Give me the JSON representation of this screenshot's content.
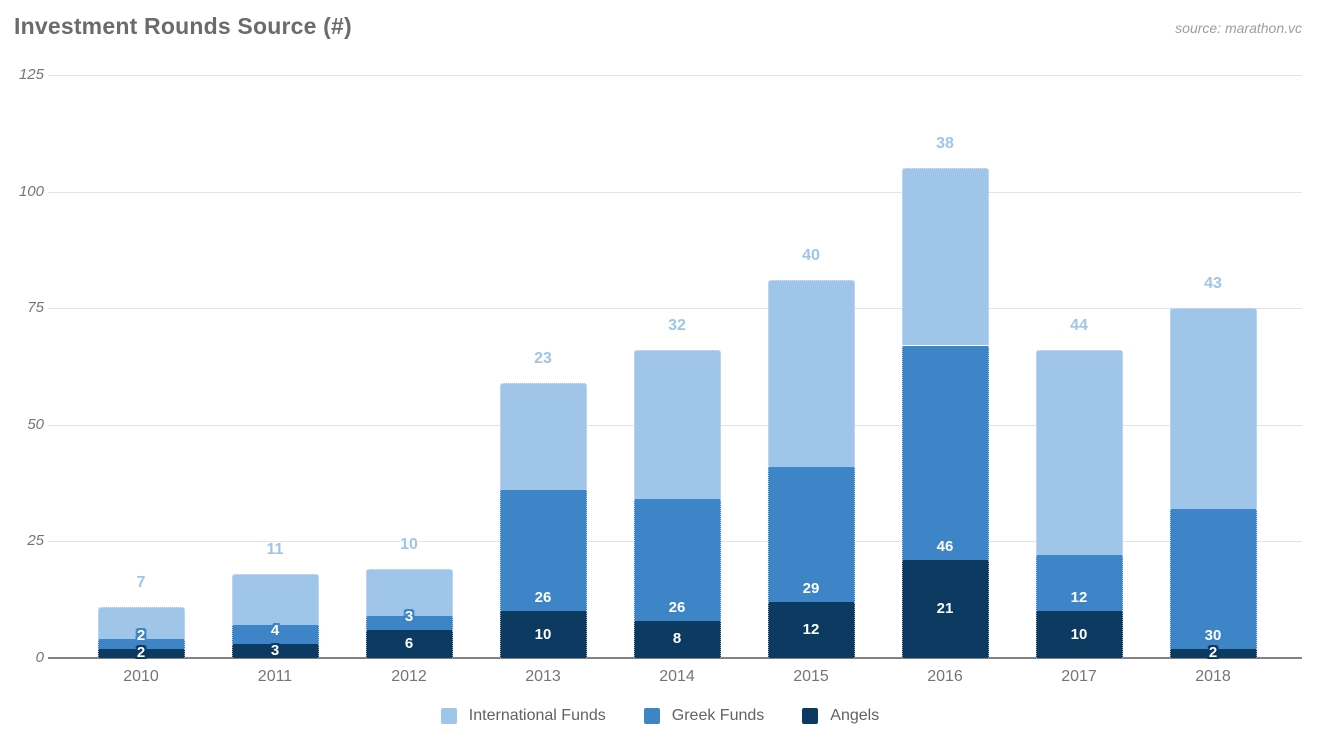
{
  "title": "Investment Rounds Source (#)",
  "source": "source: marathon.vc",
  "chart_data": {
    "type": "bar",
    "stacked": true,
    "title": "Investment Rounds Source (#)",
    "source_note": "source: marathon.vc",
    "xlabel": "",
    "ylabel": "",
    "categories": [
      "2010",
      "2011",
      "2012",
      "2013",
      "2014",
      "2015",
      "2016",
      "2017",
      "2018"
    ],
    "series": [
      {
        "name": "International Funds",
        "color": "#9fc5e8",
        "values": [
          7,
          11,
          10,
          23,
          32,
          40,
          38,
          44,
          43
        ]
      },
      {
        "name": "Greek Funds",
        "color": "#3d85c6",
        "values": [
          2,
          4,
          3,
          26,
          26,
          29,
          46,
          12,
          30
        ]
      },
      {
        "name": "Angels",
        "color": "#0c3a61",
        "values": [
          2,
          3,
          6,
          10,
          8,
          12,
          21,
          10,
          2
        ]
      }
    ],
    "ylim": [
      0,
      125
    ],
    "yticks": [
      0,
      25,
      50,
      75,
      100,
      125
    ],
    "grid": true,
    "legend_position": "bottom",
    "annotation_text_color": "#ffffff",
    "axis_text_color": "#757575",
    "gridline_color": "#e3e3e3"
  }
}
